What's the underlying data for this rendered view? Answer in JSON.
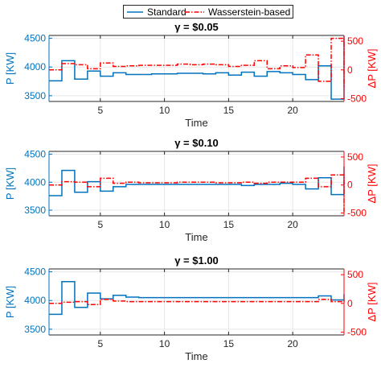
{
  "legend": {
    "standard": "Standard",
    "wasserstein": "Wasserstein-based"
  },
  "colors": {
    "standard": "#0072BD",
    "wasserstein": "#FF0000",
    "axis": "#262626",
    "grid": "#e6e6e6"
  },
  "chart_data": [
    {
      "type": "line",
      "title": "γ = $0.05",
      "xlabel": "Time",
      "ylabel_left": "P [KW]",
      "ylabel_right": "ΔP [KW]",
      "xlim": [
        1,
        24
      ],
      "ylim_left": [
        3400,
        4550
      ],
      "ylim_right": [
        -550,
        600
      ],
      "xticks": [
        5,
        10,
        15,
        20
      ],
      "yticks_left": [
        3500,
        4000,
        4500
      ],
      "yticks_right": [
        -500,
        0,
        500
      ],
      "grid": true,
      "legend_position": "top-center",
      "step": true,
      "series": [
        {
          "name": "Standard",
          "axis": "left",
          "style": "solid",
          "x": [
            1,
            2,
            3,
            4,
            5,
            6,
            7,
            8,
            9,
            10,
            11,
            12,
            13,
            14,
            15,
            16,
            17,
            18,
            19,
            20,
            21,
            22,
            23,
            24
          ],
          "values": [
            3760,
            4110,
            3790,
            3930,
            3840,
            3900,
            3870,
            3870,
            3880,
            3880,
            3890,
            3890,
            3880,
            3900,
            3860,
            3910,
            3840,
            3920,
            3900,
            3870,
            3780,
            4020,
            3440,
            4540
          ]
        },
        {
          "name": "Wasserstein-based",
          "axis": "right",
          "style": "dash-dot",
          "x": [
            1,
            2,
            3,
            4,
            5,
            6,
            7,
            8,
            9,
            10,
            11,
            12,
            13,
            14,
            15,
            16,
            17,
            18,
            19,
            20,
            21,
            22,
            23,
            24
          ],
          "values": [
            0,
            110,
            90,
            20,
            120,
            60,
            70,
            80,
            80,
            80,
            100,
            90,
            100,
            90,
            60,
            80,
            160,
            20,
            70,
            40,
            260,
            -200,
            550,
            -300
          ]
        }
      ]
    },
    {
      "type": "line",
      "title": "γ = $0.10",
      "xlabel": "Time",
      "ylabel_left": "P [KW]",
      "ylabel_right": "ΔP [KW]",
      "xlim": [
        1,
        24
      ],
      "ylim_left": [
        3400,
        4550
      ],
      "ylim_right": [
        -550,
        600
      ],
      "xticks": [
        5,
        10,
        15,
        20
      ],
      "yticks_left": [
        3500,
        4000,
        4500
      ],
      "yticks_right": [
        -500,
        0,
        500
      ],
      "grid": true,
      "step": true,
      "series": [
        {
          "name": "Standard",
          "axis": "left",
          "style": "solid",
          "x": [
            1,
            2,
            3,
            4,
            5,
            6,
            7,
            8,
            9,
            10,
            11,
            12,
            13,
            14,
            15,
            16,
            17,
            18,
            19,
            20,
            21,
            22,
            23,
            24
          ],
          "values": [
            3760,
            4210,
            3820,
            4010,
            3840,
            3920,
            3960,
            3960,
            3960,
            3960,
            3960,
            3960,
            3960,
            3960,
            3960,
            3940,
            3960,
            3960,
            3980,
            3960,
            3880,
            4080,
            3780,
            4280
          ]
        },
        {
          "name": "Wasserstein-based",
          "axis": "right",
          "style": "dash-dot",
          "x": [
            1,
            2,
            3,
            4,
            5,
            6,
            7,
            8,
            9,
            10,
            11,
            12,
            13,
            14,
            15,
            16,
            17,
            18,
            19,
            20,
            21,
            22,
            23,
            24
          ],
          "values": [
            0,
            60,
            50,
            -30,
            120,
            30,
            50,
            40,
            40,
            40,
            50,
            50,
            50,
            40,
            40,
            50,
            30,
            50,
            50,
            50,
            120,
            -30,
            180,
            -480
          ]
        }
      ]
    },
    {
      "type": "line",
      "title": "γ = $1.00",
      "xlabel": "Time",
      "ylabel_left": "P [KW]",
      "ylabel_right": "ΔP [KW]",
      "xlim": [
        1,
        24
      ],
      "ylim_left": [
        3400,
        4550
      ],
      "ylim_right": [
        -550,
        600
      ],
      "xticks": [
        5,
        10,
        15,
        20
      ],
      "yticks_left": [
        3500,
        4000,
        4500
      ],
      "yticks_right": [
        -500,
        0,
        500
      ],
      "grid": true,
      "step": true,
      "series": [
        {
          "name": "Standard",
          "axis": "left",
          "style": "solid",
          "x": [
            1,
            2,
            3,
            4,
            5,
            6,
            7,
            8,
            9,
            10,
            11,
            12,
            13,
            14,
            15,
            16,
            17,
            18,
            19,
            20,
            21,
            22,
            23,
            24
          ],
          "values": [
            3760,
            4330,
            3880,
            4130,
            4030,
            4090,
            4060,
            4050,
            4050,
            4050,
            4050,
            4050,
            4050,
            4050,
            4050,
            4050,
            4050,
            4050,
            4050,
            4050,
            4050,
            4080,
            4010,
            4110
          ]
        },
        {
          "name": "Wasserstein-based",
          "axis": "right",
          "style": "dash-dot",
          "x": [
            1,
            2,
            3,
            4,
            5,
            6,
            7,
            8,
            9,
            10,
            11,
            12,
            13,
            14,
            15,
            16,
            17,
            18,
            19,
            20,
            21,
            22,
            23,
            24
          ],
          "values": [
            0,
            20,
            30,
            -20,
            70,
            40,
            30,
            30,
            30,
            30,
            30,
            30,
            30,
            30,
            30,
            30,
            30,
            30,
            30,
            30,
            30,
            70,
            30,
            50
          ]
        }
      ]
    }
  ]
}
